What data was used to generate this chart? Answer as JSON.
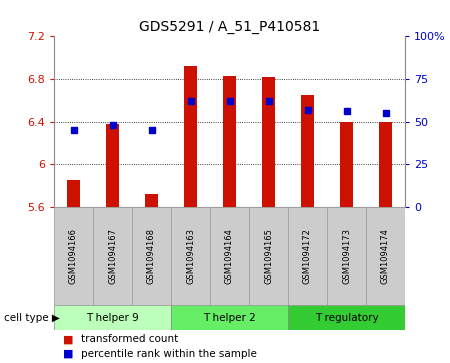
{
  "title": "GDS5291 / A_51_P410581",
  "samples": [
    "GSM1094166",
    "GSM1094167",
    "GSM1094168",
    "GSM1094163",
    "GSM1094164",
    "GSM1094165",
    "GSM1094172",
    "GSM1094173",
    "GSM1094174"
  ],
  "transformed_counts": [
    5.85,
    6.38,
    5.72,
    6.92,
    6.83,
    6.82,
    6.65,
    6.4,
    6.4
  ],
  "percentile_ranks": [
    45,
    48,
    45,
    62,
    62,
    62,
    57,
    56,
    55
  ],
  "ylim_left": [
    5.6,
    7.2
  ],
  "ylim_right": [
    0,
    100
  ],
  "yticks_left": [
    5.6,
    6.0,
    6.4,
    6.8,
    7.2
  ],
  "yticks_right": [
    0,
    25,
    50,
    75,
    100
  ],
  "ytick_labels_left": [
    "5.6",
    "6",
    "6.4",
    "6.8",
    "7.2"
  ],
  "ytick_labels_right": [
    "0",
    "25",
    "50",
    "75",
    "100%"
  ],
  "cell_types": [
    {
      "label": "T helper 9",
      "start": 0,
      "end": 3,
      "color": "#bbffbb"
    },
    {
      "label": "T helper 2",
      "start": 3,
      "end": 6,
      "color": "#66ee66"
    },
    {
      "label": "T regulatory",
      "start": 6,
      "end": 9,
      "color": "#33cc33"
    }
  ],
  "bar_color": "#cc1100",
  "dot_color": "#0000cc",
  "bar_bottom": 5.6,
  "grid_color": "#000000",
  "bg_color": "#ffffff",
  "label_box_color": "#cccccc",
  "legend_red_label": "transformed count",
  "legend_blue_label": "percentile rank within the sample",
  "cell_type_label": "cell type"
}
